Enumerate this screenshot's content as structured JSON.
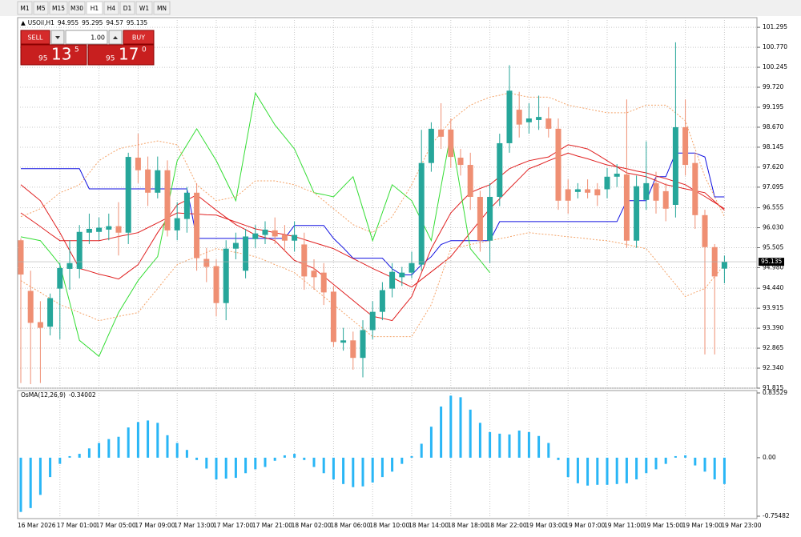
{
  "toolbar": {
    "timeframes": [
      "M1",
      "M5",
      "M15",
      "M30",
      "H1",
      "H4",
      "D1",
      "W1",
      "MN"
    ]
  },
  "trade_panel": {
    "sell": "SELL",
    "lot": "1.00",
    "buy": "BUY",
    "sell_price": [
      "95",
      "13",
      "5"
    ],
    "buy_price": [
      "95",
      "17",
      "0"
    ]
  },
  "chart_data": [
    {
      "type": "candlestick",
      "title": "USOil,H1",
      "categories": [
        "16 Mar 2026",
        null,
        null,
        null,
        "17 Mar 01:00",
        null,
        null,
        null,
        "17 Mar 05:00",
        null,
        null,
        null,
        "17 Mar 09:00",
        null,
        null,
        null,
        "17 Mar 13:00",
        null,
        null,
        null,
        "17 Mar 17:00",
        null,
        null,
        null,
        "17 Mar 21:00",
        null,
        null,
        null,
        "18 Mar 02:00",
        null,
        null,
        null,
        "18 Mar 06:00",
        null,
        null,
        null,
        "18 Mar 10:00",
        null,
        null,
        null,
        "18 Mar 14:00",
        null,
        null,
        null,
        "18 Mar 18:00",
        null,
        null,
        null,
        "18 Mar 22:00",
        null,
        null,
        null,
        "19 Mar 03:00",
        null,
        null,
        null,
        "19 Mar 07:00",
        null,
        null,
        null,
        "19 Mar 11:00",
        null,
        null,
        null,
        "19 Mar 15:00",
        null,
        null,
        null,
        "19 Mar 19:00",
        null,
        null,
        null,
        "19 Mar 23:00"
      ],
      "open": [
        95.7,
        94.37,
        93.55,
        93.43,
        94.43,
        94.95,
        94.95,
        95.9,
        95.92,
        95.98,
        96.07,
        95.9,
        97.87,
        97.56,
        96.95,
        97.54,
        95.96,
        96.26,
        96.95,
        95.21,
        95.02,
        94.05,
        95.48,
        94.9,
        95.73,
        95.84,
        95.96,
        95.84,
        95.69,
        95.59,
        94.9,
        94.85,
        94.35,
        93.01,
        93.07,
        92.61,
        93.34,
        93.82,
        94.43,
        94.73,
        94.85,
        95.06,
        97.73,
        98.61,
        98.61,
        97.87,
        97.68,
        96.84,
        95.69,
        96.84,
        98.25,
        99.13,
        98.8,
        98.86,
        98.9,
        98.63,
        97.04,
        96.97,
        97.04,
        97.04,
        97.04,
        97.37,
        97.43,
        95.69,
        96.76,
        97.2,
        96.99,
        96.63,
        98.67,
        97.73,
        96.36,
        95.52,
        94.955
      ],
      "high": [
        95.75,
        94.9,
        94.1,
        94.3,
        95.1,
        95.7,
        96.1,
        96.4,
        96.3,
        96.4,
        96.7,
        98.0,
        98.5,
        97.9,
        97.9,
        97.8,
        96.7,
        97.1,
        97.2,
        95.5,
        95.2,
        95.7,
        95.9,
        96.0,
        96.1,
        96.2,
        96.3,
        96.1,
        96.2,
        95.9,
        95.2,
        95.1,
        94.5,
        93.4,
        93.3,
        93.6,
        94.1,
        94.6,
        95.1,
        95.0,
        95.4,
        98.6,
        98.8,
        99.3,
        98.9,
        98.1,
        98.0,
        97.0,
        97.2,
        98.5,
        100.3,
        99.6,
        99.3,
        99.5,
        99.2,
        98.9,
        97.3,
        97.2,
        97.3,
        97.2,
        97.6,
        97.7,
        99.4,
        97.4,
        98.3,
        97.5,
        97.2,
        100.9,
        99.4,
        98.0,
        96.5,
        95.6,
        95.295
      ],
      "low": [
        91.95,
        91.92,
        91.95,
        93.2,
        93.1,
        94.4,
        94.7,
        95.6,
        95.7,
        95.7,
        95.3,
        95.6,
        97.2,
        96.6,
        96.8,
        95.8,
        95.7,
        95.9,
        94.9,
        94.6,
        93.7,
        93.6,
        95.2,
        94.7,
        95.5,
        95.6,
        95.6,
        95.4,
        95.4,
        94.4,
        94.4,
        94.0,
        92.9,
        92.8,
        92.3,
        92.1,
        93.1,
        93.6,
        94.2,
        94.5,
        94.7,
        94.9,
        97.5,
        98.1,
        97.6,
        97.4,
        96.5,
        95.4,
        95.1,
        96.6,
        98.0,
        98.4,
        98.5,
        98.6,
        98.4,
        96.5,
        96.4,
        96.8,
        96.8,
        96.6,
        96.8,
        97.1,
        95.5,
        95.5,
        96.5,
        96.4,
        96.2,
        96.3,
        97.4,
        96.0,
        92.7,
        92.7,
        94.57
      ],
      "close": [
        94.8,
        93.53,
        93.4,
        94.18,
        94.97,
        95.1,
        95.92,
        96.0,
        96.03,
        96.07,
        95.9,
        97.89,
        97.54,
        96.95,
        97.54,
        95.96,
        96.28,
        96.95,
        95.23,
        95.0,
        94.05,
        95.48,
        95.63,
        95.8,
        95.88,
        95.98,
        95.8,
        95.69,
        95.84,
        94.75,
        94.73,
        94.33,
        93.03,
        93.07,
        92.61,
        93.34,
        93.82,
        94.39,
        94.87,
        94.85,
        95.1,
        97.73,
        98.63,
        98.42,
        97.89,
        97.68,
        96.84,
        95.69,
        96.84,
        98.25,
        99.63,
        98.74,
        98.9,
        98.94,
        98.63,
        96.74,
        96.74,
        97.04,
        96.95,
        96.88,
        97.37,
        97.45,
        95.69,
        97.12,
        97.2,
        96.74,
        96.53,
        98.67,
        97.68,
        96.36,
        95.52,
        94.75,
        95.135
      ],
      "up_color": "#26a69a",
      "down_color": "#ef8f73",
      "lines": [
        {
          "color": "#1010e0",
          "style": "solid",
          "values": [
            97.58,
            97.58,
            97.58,
            97.58,
            97.58,
            97.58,
            97.58,
            97.05,
            97.05,
            97.05,
            97.05,
            97.05,
            97.05,
            97.05,
            97.05,
            97.05,
            97.05,
            97.05,
            95.75,
            95.75,
            95.75,
            95.75,
            95.75,
            95.75,
            95.75,
            95.75,
            95.75,
            95.75,
            96.09,
            96.09,
            96.09,
            96.09,
            95.75,
            95.5,
            95.23,
            95.23,
            95.23,
            95.23,
            94.95,
            94.79,
            94.79,
            95.06,
            95.27,
            95.59,
            95.69,
            95.69,
            95.69,
            95.69,
            95.69,
            96.19,
            96.19,
            96.19,
            96.19,
            96.19,
            96.19,
            96.19,
            96.19,
            96.19,
            96.19,
            96.19,
            96.19,
            96.19,
            96.74,
            96.74,
            96.74,
            97.37,
            97.37,
            97.99,
            97.99,
            97.99,
            97.89,
            96.84,
            96.84
          ]
        },
        {
          "color": "#e02020",
          "style": "solid",
          "values": [
            97.16,
            96.95,
            96.74,
            96.32,
            95.9,
            95.43,
            94.96,
            94.89,
            94.81,
            94.75,
            94.68,
            94.87,
            95.06,
            95.48,
            95.9,
            96.27,
            96.63,
            96.76,
            96.89,
            96.69,
            96.49,
            96.3,
            96.11,
            95.98,
            95.84,
            95.77,
            95.69,
            95.43,
            95.17,
            95.07,
            94.96,
            94.75,
            94.54,
            94.33,
            94.12,
            93.91,
            93.7,
            93.65,
            93.59,
            93.91,
            94.22,
            94.85,
            95.48,
            95.95,
            96.42,
            96.69,
            96.95,
            97.06,
            97.16,
            97.37,
            97.58,
            97.69,
            97.79,
            97.84,
            97.89,
            98.05,
            98.21,
            98.16,
            98.1,
            97.95,
            97.79,
            97.63,
            97.47,
            97.42,
            97.37,
            97.27,
            97.16,
            97.11,
            97.05,
            97.0,
            96.95,
            96.72,
            96.49
          ]
        },
        {
          "color": "#e02020",
          "style": "solid",
          "values": [
            96.42,
            96.24,
            96.06,
            95.87,
            95.69,
            95.69,
            95.69,
            95.69,
            95.69,
            95.74,
            95.8,
            95.85,
            95.9,
            96.03,
            96.16,
            96.29,
            96.42,
            96.4,
            96.39,
            96.37,
            96.36,
            96.27,
            96.18,
            96.09,
            96.0,
            95.95,
            95.9,
            95.85,
            95.8,
            95.72,
            95.64,
            95.56,
            95.48,
            95.35,
            95.22,
            95.09,
            94.96,
            94.84,
            94.72,
            94.59,
            94.47,
            94.67,
            94.87,
            95.07,
            95.27,
            95.59,
            95.9,
            96.22,
            96.53,
            96.79,
            97.06,
            97.32,
            97.58,
            97.68,
            97.79,
            97.89,
            97.99,
            97.91,
            97.84,
            97.76,
            97.68,
            97.63,
            97.58,
            97.52,
            97.47,
            97.39,
            97.32,
            97.24,
            97.16,
            97.0,
            96.85,
            96.69,
            96.53
          ]
        },
        {
          "color": "#33dd33",
          "style": "solid",
          "values": [
            95.79,
            95.74,
            95.69,
            95.38,
            95.06,
            94.07,
            93.07,
            92.86,
            92.65,
            93.23,
            93.8,
            94.22,
            94.64,
            94.96,
            95.27,
            96.53,
            97.79,
            98.21,
            98.63,
            98.21,
            97.79,
            97.27,
            96.74,
            98.16,
            99.57,
            99.15,
            98.73,
            98.42,
            98.1,
            97.53,
            96.95,
            96.9,
            96.84,
            97.11,
            97.37,
            96.53,
            95.69,
            96.43,
            97.16,
            96.95,
            96.74,
            96.22,
            95.69,
            97.11,
            98.52,
            97.0,
            95.48,
            95.17,
            94.85,
            null,
            null,
            null,
            null,
            null,
            null,
            null,
            null,
            null,
            null,
            null,
            null,
            null,
            null,
            null,
            null,
            null,
            null,
            null,
            null,
            null,
            null,
            null,
            null
          ]
        },
        {
          "color": "#f4a46a",
          "style": "dotted",
          "values": [
            96.32,
            96.42,
            96.53,
            96.74,
            96.95,
            97.05,
            97.16,
            97.47,
            97.79,
            97.95,
            98.1,
            98.16,
            98.21,
            98.26,
            98.31,
            98.26,
            98.21,
            97.69,
            97.16,
            96.95,
            96.74,
            96.79,
            96.84,
            97.05,
            97.26,
            97.26,
            97.26,
            97.21,
            97.16,
            97.05,
            96.95,
            96.74,
            96.53,
            96.32,
            96.11,
            96.0,
            95.9,
            96.11,
            96.32,
            96.74,
            97.16,
            97.69,
            98.21,
            98.52,
            98.84,
            99.05,
            99.25,
            99.36,
            99.46,
            99.51,
            99.57,
            99.51,
            99.46,
            99.46,
            99.46,
            99.36,
            99.25,
            99.2,
            99.15,
            99.1,
            99.05,
            99.05,
            99.05,
            99.15,
            99.25,
            99.25,
            99.25,
            99.05,
            98.84,
            98.1,
            97.37,
            96.84,
            96.32
          ]
        },
        {
          "color": "#f4a46a",
          "style": "dotted",
          "values": [
            94.64,
            94.48,
            94.33,
            94.17,
            94.01,
            93.91,
            93.8,
            93.7,
            93.59,
            93.64,
            93.7,
            93.75,
            93.8,
            94.12,
            94.43,
            94.75,
            95.06,
            95.17,
            95.27,
            95.38,
            95.48,
            95.43,
            95.38,
            95.33,
            95.27,
            95.17,
            95.06,
            94.96,
            94.85,
            94.64,
            94.43,
            94.22,
            94.01,
            93.8,
            93.59,
            93.38,
            93.17,
            93.17,
            93.17,
            93.17,
            93.17,
            93.59,
            94.01,
            94.75,
            95.48,
            95.53,
            95.59,
            95.64,
            95.69,
            95.74,
            95.79,
            95.85,
            95.9,
            95.87,
            95.85,
            95.82,
            95.79,
            95.77,
            95.74,
            95.71,
            95.69,
            95.64,
            95.59,
            95.53,
            95.48,
            95.17,
            94.85,
            94.54,
            94.22,
            94.33,
            94.43,
            94.75,
            95.06
          ]
        }
      ],
      "ylim": [
        91.815,
        101.55
      ],
      "yticks": [
        101.295,
        {
          "value": 100.77,
          "label": "100.770"
        },
        100.245,
        {
          "value": 99.72,
          "label": "99.720"
        },
        99.195,
        {
          "value": 98.67,
          "label": "98.670"
        },
        98.145,
        {
          "value": 97.62,
          "label": "97.620"
        },
        97.095,
        96.555,
        {
          "value": 96.03,
          "label": "96.030"
        },
        95.505,
        {
          "value": 94.98,
          "label": "94.980"
        },
        {
          "value": 94.44,
          "label": "94.440"
        },
        93.915,
        {
          "value": 93.39,
          "label": "93.390"
        },
        92.865,
        {
          "value": 92.34,
          "label": "92.340"
        },
        91.815
      ],
      "grid": true
    },
    {
      "type": "bar",
      "title": "OsMA(12,26,9)",
      "color": "#29b6f6",
      "values": [
        -0.7,
        -0.65,
        -0.48,
        -0.25,
        -0.08,
        0.02,
        0.05,
        0.12,
        0.19,
        0.24,
        0.27,
        0.39,
        0.46,
        0.48,
        0.45,
        0.29,
        0.19,
        0.1,
        -0.03,
        -0.14,
        -0.28,
        -0.27,
        -0.26,
        -0.2,
        -0.15,
        -0.12,
        -0.04,
        0.03,
        0.05,
        -0.03,
        -0.12,
        -0.2,
        -0.28,
        -0.34,
        -0.38,
        -0.37,
        -0.32,
        -0.25,
        -0.18,
        -0.08,
        0.02,
        0.18,
        0.4,
        0.66,
        0.8,
        0.78,
        0.62,
        0.45,
        0.33,
        0.31,
        0.3,
        0.35,
        0.33,
        0.28,
        0.19,
        -0.03,
        -0.25,
        -0.33,
        -0.36,
        -0.35,
        -0.35,
        -0.34,
        -0.33,
        -0.28,
        -0.2,
        -0.15,
        -0.08,
        0.02,
        0.03,
        -0.1,
        -0.18,
        -0.28,
        -0.34002
      ],
      "ylim": [
        -0.75482,
        0.83529
      ],
      "yticks": [
        0.83529,
        {
          "value": 0,
          "label": "0.00"
        },
        -0.75482
      ]
    }
  ]
}
